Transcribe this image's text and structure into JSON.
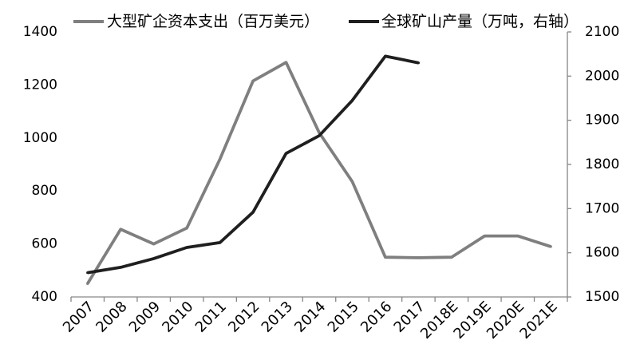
{
  "chart_data": {
    "type": "line",
    "categories": [
      "2007",
      "2008",
      "2009",
      "2010",
      "2011",
      "2012",
      "2013",
      "2014",
      "2015",
      "2016",
      "2017",
      "2018E",
      "2019E",
      "2020E",
      "2021E"
    ],
    "series": [
      {
        "name": "大型矿企资本支出（百万美元）",
        "axis": "left",
        "color": "#7f7f7f",
        "values": [
          450,
          655,
          600,
          660,
          920,
          1215,
          1285,
          1020,
          835,
          550,
          548,
          550,
          630,
          630,
          590
        ]
      },
      {
        "name": "全球矿山产量（万吨，右轴）",
        "axis": "right",
        "color": "#1f1f1f",
        "values": [
          1555,
          1567,
          1587,
          1612,
          1623,
          1692,
          1825,
          1865,
          1945,
          2045,
          2030,
          null,
          null,
          null,
          null
        ]
      }
    ],
    "y_left": {
      "min": 400,
      "max": 1400,
      "ticks": [
        400,
        600,
        800,
        1000,
        1200,
        1400
      ]
    },
    "y_right": {
      "min": 1500,
      "max": 2100,
      "ticks": [
        1500,
        1600,
        1700,
        1800,
        1900,
        2000,
        2100
      ]
    },
    "legend": "top",
    "grid": false
  },
  "colors": {
    "background": "#ffffff",
    "axis": "#868686",
    "text": "#000000"
  }
}
